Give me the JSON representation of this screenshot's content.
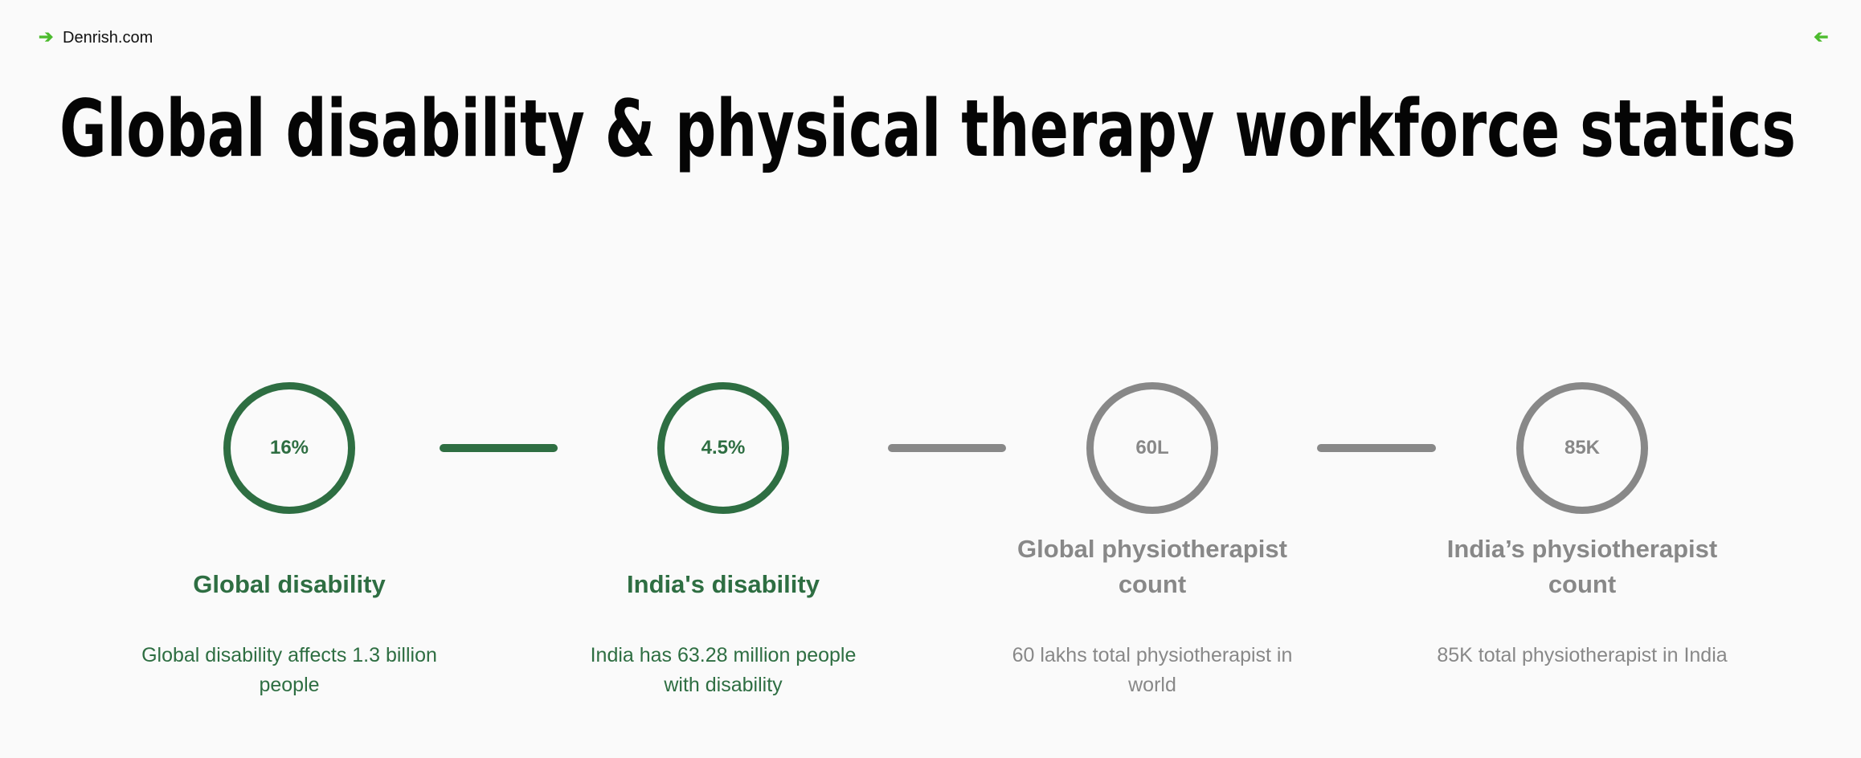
{
  "header": {
    "brand": "Denrish.com",
    "title": "Global disability & physical therapy workforce statics"
  },
  "steps": [
    {
      "value": "16%",
      "title": [
        "Global disability"
      ],
      "text": [
        "Global disability affects 1.3 billion",
        "people"
      ],
      "color": "#2e6e42"
    },
    {
      "value": "4.5%",
      "title": [
        "India's disability"
      ],
      "text": [
        "India has 63.28 million people",
        "with disability"
      ],
      "color": "#2e6e42"
    },
    {
      "value": "60L",
      "title": [
        "Global physiotherapist",
        "count"
      ],
      "text": [
        "60 lakhs total physiotherapist in",
        "world"
      ],
      "color": "#888888"
    },
    {
      "value": "85K",
      "title": [
        "India’s  physiotherapist",
        "count"
      ],
      "text": [
        "85K total physiotherapist in India"
      ],
      "color": "#888888"
    }
  ]
}
